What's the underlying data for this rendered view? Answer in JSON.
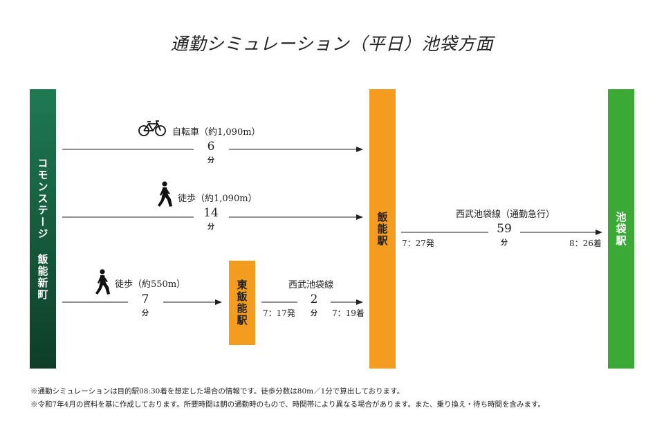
{
  "title": "通勤シミュレーション（平日）池袋方面",
  "stations": {
    "origin": "コモンステージ 飯能新町",
    "higashi_hanno": "東飯能駅",
    "hanno": "飯能駅",
    "ikebukuro": "池袋駅"
  },
  "routes": {
    "bike": {
      "label": "自転車（約1,090m）",
      "minutes": "6",
      "unit": "分",
      "icon": "bicycle-icon"
    },
    "walk_hanno": {
      "label": "徒歩（約1,090m）",
      "minutes": "14",
      "unit": "分",
      "icon": "walker-icon"
    },
    "walk_higashi": {
      "label": "徒歩（約550m）",
      "minutes": "7",
      "unit": "分",
      "icon": "walker-icon"
    },
    "seibu_short": {
      "label": "西武池袋線",
      "minutes": "2",
      "unit": "分",
      "depart": "7：17発",
      "arrive": "7：19着"
    },
    "seibu_express": {
      "label": "西武池袋線（通勤急行）",
      "minutes": "59",
      "unit": "分",
      "depart": "7：27発",
      "arrive": "8：26着"
    }
  },
  "notes": [
    "※通勤シミュレーションは目的駅08:30着を想定した場合の情報です。徒歩分数は80m／1分で算出しております。",
    "※令和7年4月の資料を基に作成しております。所要時間は朝の通勤時のもので、時間帯により異なる場合があります。また、乗り換え・待ち時間を含みます。"
  ],
  "colors": {
    "origin_top": "#1e7a52",
    "origin_bottom": "#0e3d27",
    "orange": "#f39c1f",
    "green": "#3aa935"
  }
}
